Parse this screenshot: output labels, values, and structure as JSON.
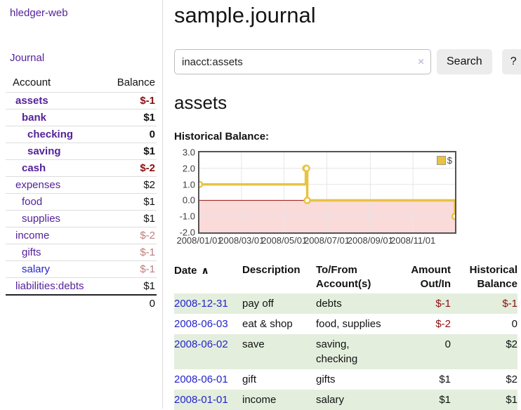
{
  "brand": "hledger-web",
  "nav": {
    "journal": "Journal"
  },
  "colors": {
    "link_purple": "#55229b",
    "link_blue": "#2323cc",
    "negative": "#8b0f0f",
    "faded_negative": "#bd7e7e",
    "row_shaded": "#e3eedd",
    "series_yellow": "#e8c341"
  },
  "sidebar": {
    "columns": {
      "account": "Account",
      "balance": "Balance"
    },
    "accounts": [
      {
        "name": "assets",
        "balance": "$-1",
        "indent": 1,
        "bold": true,
        "balance_color": "negative",
        "link_color": "purple"
      },
      {
        "name": "bank",
        "balance": "$1",
        "indent": 2,
        "bold": true,
        "balance_color": "normal",
        "link_color": "purple"
      },
      {
        "name": "checking",
        "balance": "0",
        "indent": 3,
        "bold": true,
        "balance_color": "normal",
        "link_color": "purple"
      },
      {
        "name": "saving",
        "balance": "$1",
        "indent": 3,
        "bold": true,
        "balance_color": "normal",
        "link_color": "purple"
      },
      {
        "name": "cash",
        "balance": "$-2",
        "indent": 2,
        "bold": true,
        "balance_color": "negative",
        "link_color": "purple"
      },
      {
        "name": "expenses",
        "balance": "$2",
        "indent": 1,
        "bold": false,
        "balance_color": "normal",
        "link_color": "purple"
      },
      {
        "name": "food",
        "balance": "$1",
        "indent": 2,
        "bold": false,
        "balance_color": "normal",
        "link_color": "purple"
      },
      {
        "name": "supplies",
        "balance": "$1",
        "indent": 2,
        "bold": false,
        "balance_color": "normal",
        "link_color": "purple"
      },
      {
        "name": "income",
        "balance": "$-2",
        "indent": 1,
        "bold": false,
        "balance_color": "faded-negative",
        "link_color": "purple"
      },
      {
        "name": "gifts",
        "balance": "$-1",
        "indent": 2,
        "bold": false,
        "balance_color": "faded-negative",
        "link_color": "purple"
      },
      {
        "name": "salary",
        "balance": "$-1",
        "indent": 2,
        "bold": false,
        "balance_color": "faded-negative",
        "link_color": "blue"
      },
      {
        "name": "liabilities:debts",
        "balance": "$1",
        "indent": 1,
        "bold": false,
        "balance_color": "normal",
        "link_color": "purple"
      }
    ],
    "total": "0"
  },
  "main": {
    "title": "sample.journal",
    "search": {
      "query": "inacct:assets",
      "clear_icon": "×",
      "search_button": "Search",
      "help_button": "?"
    },
    "account_heading": "assets",
    "chart_title": "Historical Balance:"
  },
  "register": {
    "columns": [
      {
        "label": "Date",
        "sort_icon": "∧"
      },
      {
        "label": "Description"
      },
      {
        "label": "To/From Account(s)"
      },
      {
        "label": "Amount Out/In"
      },
      {
        "label": "Historical Balance"
      }
    ],
    "rows": [
      {
        "date": "2008-12-31",
        "description": "pay off",
        "accounts": "debts",
        "amount": "$-1",
        "amount_color": "negative",
        "balance": "$-1",
        "balance_color": "negative",
        "shaded": true
      },
      {
        "date": "2008-06-03",
        "description": "eat & shop",
        "accounts": "food, supplies",
        "amount": "$-2",
        "amount_color": "negative",
        "balance": "0",
        "balance_color": "normal",
        "shaded": false
      },
      {
        "date": "2008-06-02",
        "description": "save",
        "accounts": "saving, checking",
        "amount": "0",
        "amount_color": "normal",
        "balance": "$2",
        "balance_color": "normal",
        "shaded": true
      },
      {
        "date": "2008-06-01",
        "description": "gift",
        "accounts": "gifts",
        "amount": "$1",
        "amount_color": "normal",
        "balance": "$2",
        "balance_color": "normal",
        "shaded": false
      },
      {
        "date": "2008-01-01",
        "description": "income",
        "accounts": "salary",
        "amount": "$1",
        "amount_color": "normal",
        "balance": "$1",
        "balance_color": "normal",
        "shaded": true
      }
    ]
  },
  "chart_data": {
    "type": "line",
    "line_style": "step-after",
    "title": "Historical Balance",
    "x_start": "2008-01-01",
    "x_end": "2008-12-31",
    "ylim": [
      -2,
      3
    ],
    "yticks": [
      {
        "label": "3.0",
        "value": 3
      },
      {
        "label": "2.0",
        "value": 2
      },
      {
        "label": "1.0",
        "value": 1
      },
      {
        "label": "0.0",
        "value": 0
      },
      {
        "label": "-1.0",
        "value": -1
      },
      {
        "label": "-2.0",
        "value": -2
      }
    ],
    "xticks": [
      "2008/01/01",
      "2008/03/01",
      "2008/05/01",
      "2008/07/01",
      "2008/09/01",
      "2008/11/01"
    ],
    "grid": true,
    "legend": {
      "label": "$",
      "position": "top-right"
    },
    "series": [
      {
        "name": "$",
        "color": "#e8c341",
        "marker": "open-circle",
        "points": [
          {
            "date": "2008-01-01",
            "value": 1
          },
          {
            "date": "2008-06-01",
            "value": 2
          },
          {
            "date": "2008-06-02",
            "value": 2
          },
          {
            "date": "2008-06-03",
            "value": 0
          },
          {
            "date": "2008-12-31",
            "value": -1
          }
        ]
      }
    ],
    "region_colors": {
      "negative_region": "#fbdada",
      "zero_line": "#991111",
      "gridline": "#e6e6e6",
      "plot_border": "#545454"
    }
  }
}
